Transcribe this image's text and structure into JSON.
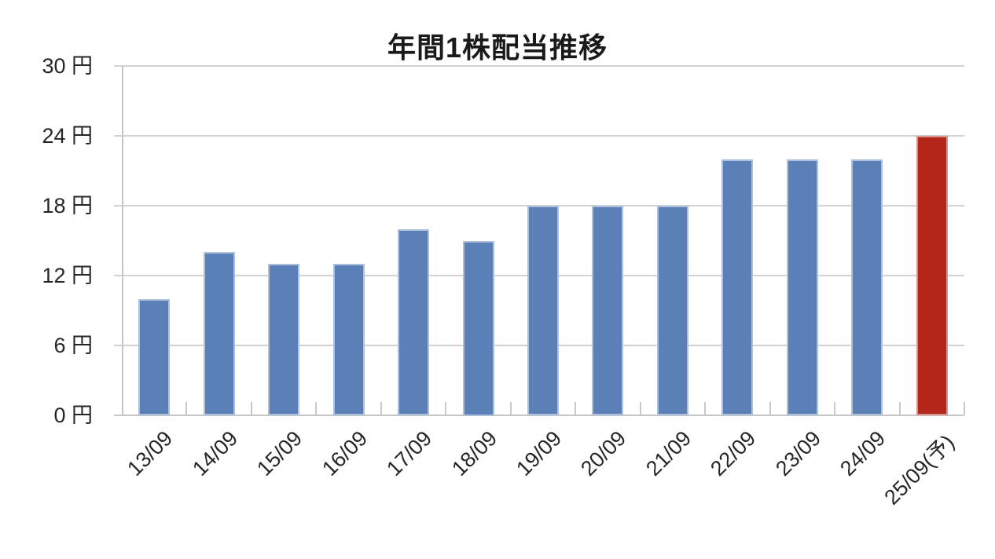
{
  "chart_data": {
    "type": "bar",
    "title": "年間1株配当推移",
    "categories": [
      "13/09",
      "14/09",
      "15/09",
      "16/09",
      "17/09",
      "18/09",
      "19/09",
      "20/09",
      "21/09",
      "22/09",
      "23/09",
      "24/09",
      "25/09(予)"
    ],
    "values": [
      10,
      14,
      13,
      13,
      16,
      15,
      18,
      18,
      18,
      22,
      22,
      22,
      24
    ],
    "unit": "円",
    "yticks": [
      0,
      6,
      12,
      18,
      24,
      30
    ],
    "ytick_labels": [
      "0 円",
      "6 円",
      "12 円",
      "18 円",
      "24 円",
      "30 円"
    ],
    "ylim": [
      0,
      30
    ],
    "grid": true,
    "legend_position": "none",
    "forecast_index": 12,
    "colors": {
      "bar_default": "#5b80b8",
      "bar_forecast": "#b2271a",
      "gridline": "#d2d2d2",
      "axis": "#c6c6c6",
      "tick": "#c9c9c9",
      "text": "#262626",
      "title_text": "#1a1a1a",
      "background": "#ffffff"
    }
  }
}
